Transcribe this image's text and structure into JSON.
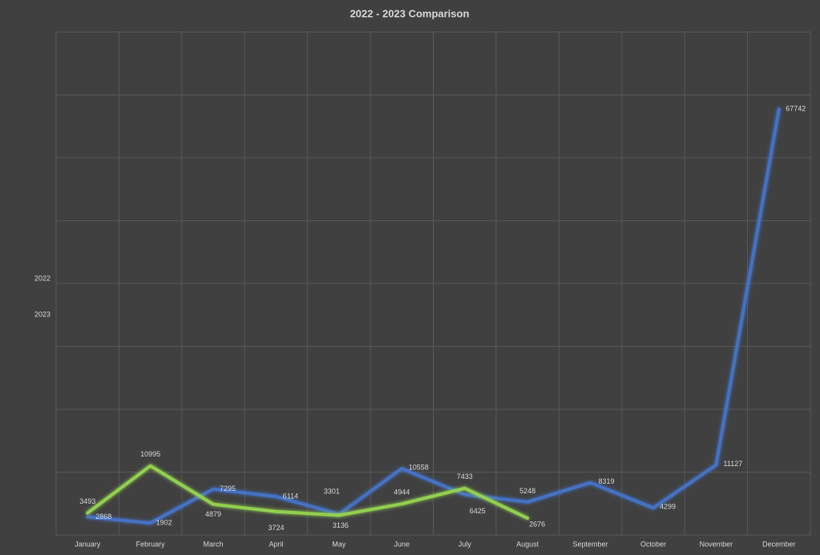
{
  "chart_data": {
    "type": "line",
    "title": "2022 - 2023 Comparison",
    "categories": [
      "January",
      "February",
      "March",
      "April",
      "May",
      "June",
      "July",
      "August",
      "September",
      "October",
      "November",
      "December"
    ],
    "series": [
      {
        "name": "2022",
        "color": "#4472c4",
        "values": [
          2868,
          1902,
          7295,
          6114,
          3301,
          10558,
          6425,
          5248,
          8319,
          4299,
          11127,
          67742
        ]
      },
      {
        "name": "2023",
        "color": "#92d050",
        "values": [
          3493,
          10995,
          4879,
          3724,
          3136,
          4944,
          7433,
          2676,
          null,
          null,
          null,
          null
        ]
      }
    ],
    "ylim": [
      0,
      80000
    ],
    "yticks": [
      0,
      10000,
      20000,
      30000,
      40000,
      50000,
      60000,
      70000,
      80000
    ],
    "ytick_labels": false,
    "grid": true,
    "legend": "left",
    "data_labels": true
  }
}
